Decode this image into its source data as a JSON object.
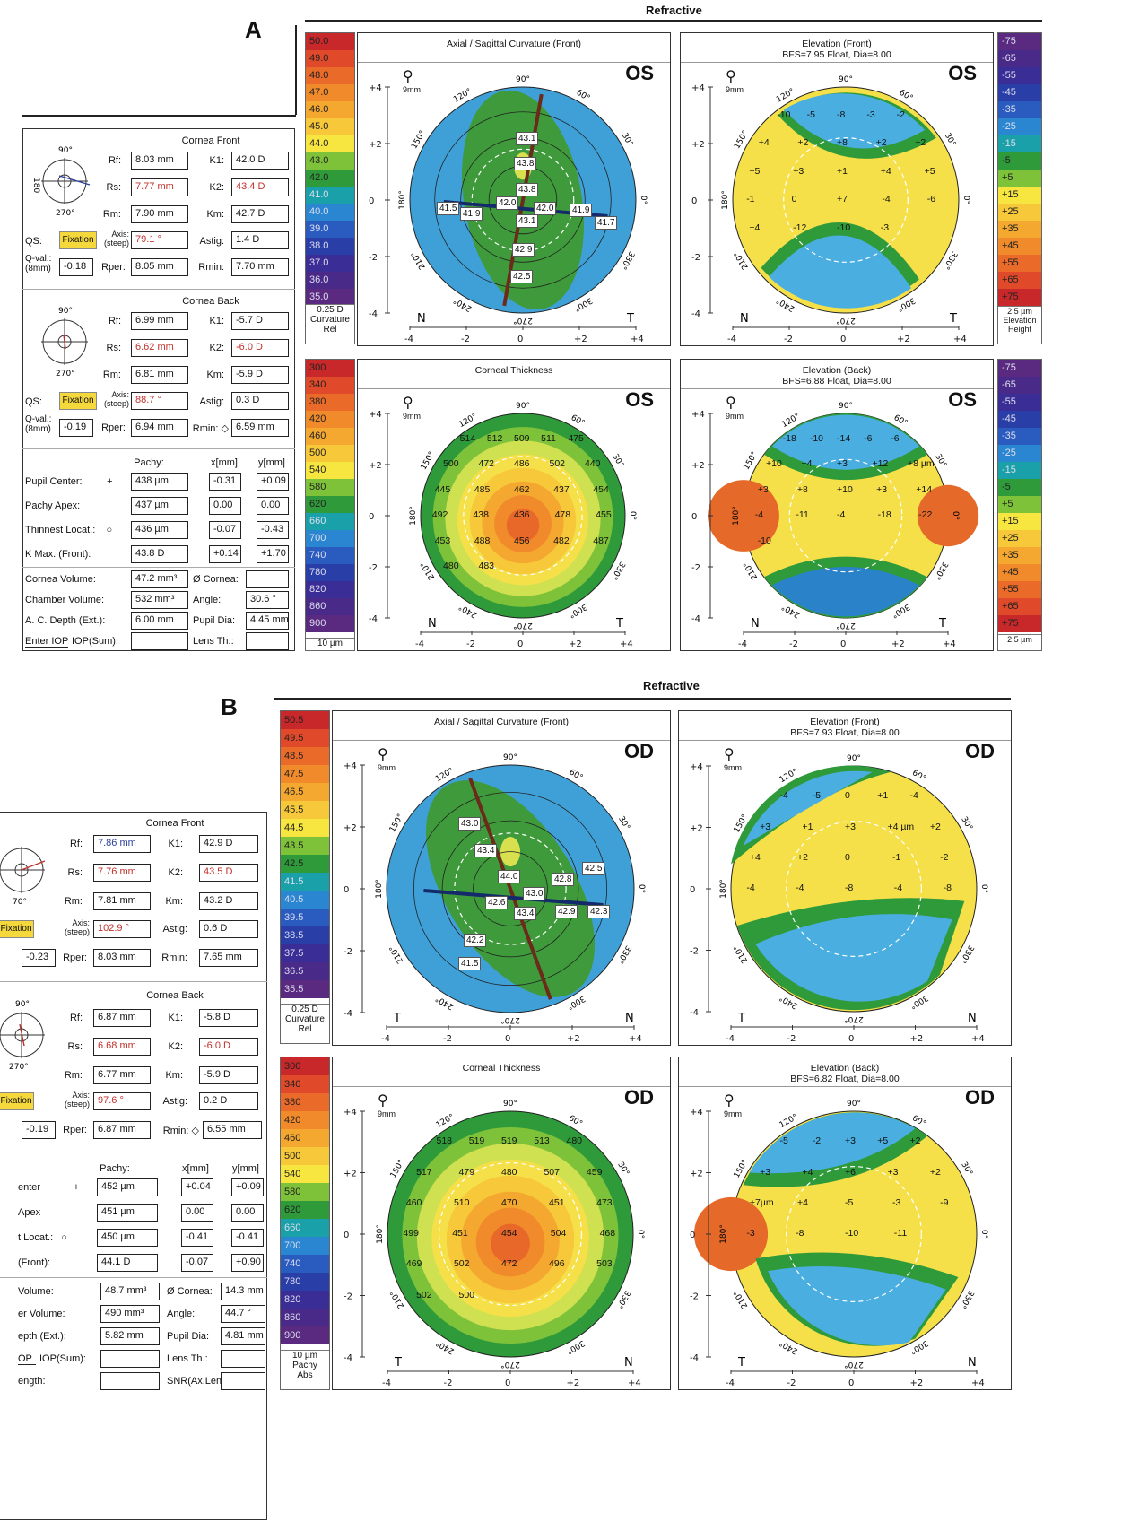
{
  "panels": [
    {
      "letter": "A",
      "title": "Refractive",
      "front": {
        "title": "Cornea Front",
        "rf": "8.03 mm",
        "rs": "7.77 mm",
        "rm": "7.90 mm",
        "k1": "42.0 D",
        "k2": "43.4 D",
        "km": "42.7 D",
        "axis": "79.1 °",
        "astig": "1.4 D",
        "qval": "-0.18",
        "rper": "8.05 mm",
        "rmin": "7.70 mm"
      },
      "back": {
        "title": "Cornea Back",
        "rf": "6.99 mm",
        "rs": "6.62 mm",
        "rm": "6.81 mm",
        "k1": "-5.7 D",
        "k2": "-6.0 D",
        "km": "-5.9 D",
        "axis": "88.7 °",
        "astig": "0.3 D",
        "qval": "-0.19",
        "rper": "6.94 mm",
        "rmin": "6.59 mm"
      },
      "pachy": {
        "pupil": [
          "438 µm",
          "-0.31",
          "+0.09"
        ],
        "apex": [
          "437 µm",
          "0.00",
          "0.00"
        ],
        "thinnest": [
          "436 µm",
          "-0.07",
          "-0.43"
        ],
        "kmax": [
          "43.8 D",
          "+0.14",
          "+1.70"
        ]
      },
      "bottom": {
        "volume": "47.2 mm³",
        "cornea_d": "",
        "chamber": "532 mm³",
        "angle": "30.6 °",
        "acd": "6.00 mm",
        "pupil_dia": "4.45 mm",
        "iop": "",
        "lens": ""
      },
      "curv_scale": [
        "50.0",
        "49.0",
        "48.0",
        "47.0",
        "46.0",
        "45.0",
        "44.0",
        "43.0",
        "42.0",
        "41.0",
        "40.0",
        "39.0",
        "38.0",
        "37.0",
        "36.0",
        "35.0"
      ],
      "curv_foot": [
        "0.25 D",
        "Curvature",
        "Rel"
      ],
      "thick_scale": [
        "300",
        "340",
        "380",
        "420",
        "460",
        "500",
        "540",
        "580",
        "620",
        "660",
        "700",
        "740",
        "780",
        "820",
        "860",
        "900"
      ],
      "thick_foot": [
        "10 µm"
      ],
      "elev_scale": [
        "-75",
        "-65",
        "-55",
        "-45",
        "-35",
        "-25",
        "-15",
        "-5",
        "+5",
        "+15",
        "+25",
        "+35",
        "+45",
        "+55",
        "+65",
        "+75"
      ],
      "elev_foot": [
        "2.5 µm",
        "Elevation",
        "Height"
      ],
      "maps": {
        "axial": {
          "title": "Axial / Sagittal Curvature (Front)",
          "sub": "",
          "eye": "OS",
          "left": "N",
          "right": "T",
          "values": [
            "43.1",
            "43.8",
            "43.8",
            "42.0",
            "42.0",
            "41.9",
            "43.1",
            "42.9",
            "42.5",
            "41.5",
            "41.9",
            "41.7"
          ]
        },
        "efront": {
          "title": "Elevation (Front)",
          "sub": "BFS=7.95 Float, Dia=8.00",
          "eye": "OS",
          "left": "N",
          "right": "T",
          "values": [
            "-10",
            "-5",
            "-8",
            "-3",
            "-2",
            "+4",
            "+2",
            "+8",
            "+2",
            "+2",
            "+5",
            "+3",
            "+1",
            "+4",
            "+5",
            "-1",
            "0",
            "+7",
            "-4",
            "-6",
            "+4",
            "-12",
            "-10",
            "-3"
          ]
        },
        "thick": {
          "title": "Corneal Thickness",
          "sub": "",
          "eye": "OS",
          "left": "N",
          "right": "T",
          "values": [
            "514",
            "512",
            "509",
            "511",
            "475",
            "500",
            "472",
            "486",
            "502",
            "440",
            "445",
            "485",
            "462",
            "437",
            "454",
            "492",
            "438",
            "436",
            "478",
            "455",
            "453",
            "488",
            "456",
            "482",
            "487",
            "480",
            "483"
          ]
        },
        "eback": {
          "title": "Elevation (Back)",
          "sub": "BFS=6.88 Float, Dia=8.00",
          "eye": "OS",
          "left": "N",
          "right": "T",
          "values": [
            "-18",
            "-10",
            "-14",
            "-6",
            "-6",
            "+10",
            "+4",
            "+3",
            "+12",
            "+8 µm",
            "+3",
            "+8",
            "+10",
            "+3",
            "+14",
            "-4",
            "-11",
            "-4",
            "-18",
            "-22",
            "-10"
          ]
        }
      }
    },
    {
      "letter": "B",
      "title": "Refractive",
      "front": {
        "title": "Cornea Front",
        "rf": "7.86 mm",
        "rs": "7.76 mm",
        "rm": "7.81 mm",
        "k1": "42.9 D",
        "k2": "43.5 D",
        "km": "43.2 D",
        "axis": "102.9 °",
        "astig": "0.6 D",
        "qval": "-0.23",
        "rper": "8.03 mm",
        "rmin": "7.65 mm"
      },
      "back": {
        "title": "Cornea Back",
        "rf": "6.87 mm",
        "rs": "6.68 mm",
        "rm": "6.77 mm",
        "k1": "-5.8 D",
        "k2": "-6.0 D",
        "km": "-5.9 D",
        "axis": "97.6 °",
        "astig": "0.2 D",
        "qval": "-0.19",
        "rper": "6.87 mm",
        "rmin": "6.55 mm"
      },
      "pachy": {
        "pupil": [
          "452 µm",
          "+0.04",
          "+0.09"
        ],
        "apex": [
          "451 µm",
          "0.00",
          "0.00"
        ],
        "thinnest": [
          "450 µm",
          "-0.41",
          "-0.41"
        ],
        "kmax": [
          "44.1 D",
          "-0.07",
          "+0.90"
        ]
      },
      "bottom": {
        "volume": "48.7 mm³",
        "cornea_d": "14.3 mm",
        "chamber": "490 mm³",
        "angle": "44.7 °",
        "acd": "5.82 mm",
        "pupil_dia": "4.81 mm",
        "iop": "",
        "lens": "",
        "snr": ""
      },
      "curv_scale": [
        "50.5",
        "49.5",
        "48.5",
        "47.5",
        "46.5",
        "45.5",
        "44.5",
        "43.5",
        "42.5",
        "41.5",
        "40.5",
        "39.5",
        "38.5",
        "37.5",
        "36.5",
        "35.5"
      ],
      "curv_foot": [
        "0.25 D",
        "Curvature",
        "Rel"
      ],
      "thick_scale": [
        "300",
        "340",
        "380",
        "420",
        "460",
        "500",
        "540",
        "580",
        "620",
        "660",
        "700",
        "740",
        "780",
        "820",
        "860",
        "900"
      ],
      "thick_foot": [
        "10 µm",
        "Pachy",
        "Abs"
      ],
      "maps": {
        "axial": {
          "title": "Axial / Sagittal Curvature (Front)",
          "sub": "",
          "eye": "OD",
          "left": "T",
          "right": "N",
          "values": [
            "43.0",
            "43.4",
            "44.0",
            "42.8",
            "42.5",
            "43.0",
            "42.6",
            "43.4",
            "42.9",
            "42.3",
            "42.2",
            "41.5"
          ]
        },
        "efront": {
          "title": "Elevation (Front)",
          "sub": "BFS=7.93 Float, Dia=8.00",
          "eye": "OD",
          "left": "T",
          "right": "N",
          "values": [
            "-4",
            "-5",
            "0",
            "+1",
            "-4",
            "+3",
            "+1",
            "+3",
            "+4 µm",
            "+2",
            "+4",
            "+2",
            "0",
            "-1",
            "-2",
            "-4",
            "-4",
            "-8",
            "-4",
            "-8"
          ]
        },
        "thick": {
          "title": "Corneal Thickness",
          "sub": "",
          "eye": "OD",
          "left": "T",
          "right": "N",
          "values": [
            "518",
            "519",
            "519",
            "513",
            "480",
            "517",
            "479",
            "480",
            "507",
            "459",
            "460",
            "510",
            "470",
            "451",
            "473",
            "499",
            "451",
            "454",
            "504",
            "468",
            "469",
            "502",
            "472",
            "496",
            "503",
            "502",
            "500"
          ]
        },
        "eback": {
          "title": "Elevation (Back)",
          "sub": "BFS=6.82 Float, Dia=8.00",
          "eye": "OD",
          "left": "T",
          "right": "N",
          "values": [
            "-5",
            "-2",
            "+3",
            "+5",
            "+2",
            "+3",
            "+4",
            "+6",
            "+3",
            "+2",
            "+7µm",
            "+4",
            "-5",
            "-3",
            "-9",
            "-3",
            "-8",
            "-10",
            "-11"
          ]
        }
      }
    }
  ]
}
